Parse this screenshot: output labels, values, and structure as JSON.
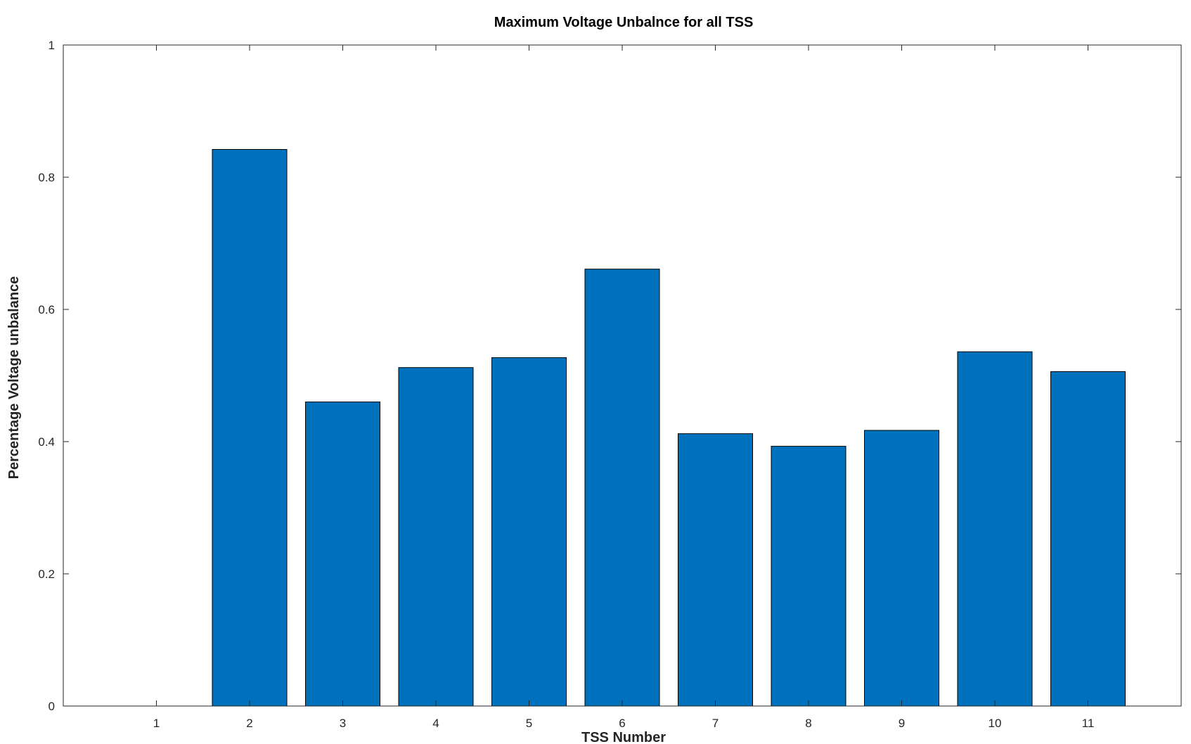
{
  "chart_data": {
    "type": "bar",
    "title": "Maximum Voltage Unbalnce for all TSS",
    "xlabel": "TSS Number",
    "ylabel": "Percentage Voltage unbalance",
    "categories": [
      "1",
      "2",
      "3",
      "4",
      "5",
      "6",
      "7",
      "8",
      "9",
      "10",
      "11"
    ],
    "values": [
      0,
      0.842,
      0.46,
      0.512,
      0.527,
      0.661,
      0.412,
      0.393,
      0.417,
      0.536,
      0.506
    ],
    "ylim": [
      0,
      1
    ],
    "xlim": [
      0,
      12
    ],
    "yticks": [
      "0",
      "0.2",
      "0.4",
      "0.6",
      "0.8",
      "1"
    ],
    "ytick_values": [
      0,
      0.2,
      0.4,
      0.6,
      0.8,
      1
    ],
    "bar_color": "#0072BD",
    "grid": false,
    "legend": "none"
  }
}
